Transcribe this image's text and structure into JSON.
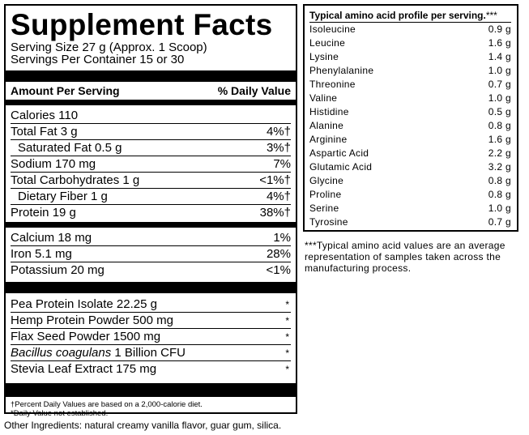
{
  "supplement_facts": {
    "title": "Supplement Facts",
    "serving_size": "Serving Size 27 g (Approx. 1 Scoop)",
    "servings_per_container": "Servings Per Container 15 or 30",
    "header_left": "Amount Per Serving",
    "header_right": "% Daily Value",
    "group1": [
      {
        "label": "Calories 110",
        "dv": ""
      },
      {
        "label": "Total Fat 3 g",
        "dv": "4%†"
      },
      {
        "label": "Saturated Fat 0.5 g",
        "dv": "3%†"
      },
      {
        "label": "Sodium 170 mg",
        "dv": "7%"
      },
      {
        "label": "Total Carbohydrates 1 g",
        "dv": "<1%†"
      },
      {
        "label": "Dietary Fiber 1 g",
        "dv": "4%†"
      },
      {
        "label": "Protein 19 g",
        "dv": "38%†"
      }
    ],
    "group2": [
      {
        "label": "Calcium 18 mg",
        "dv": "1%"
      },
      {
        "label": "Iron 5.1 mg",
        "dv": "28%"
      },
      {
        "label": "Potassium 20 mg",
        "dv": "<1%"
      }
    ],
    "group3": [
      {
        "label": "Pea Protein Isolate 22.25 g",
        "dv": "*"
      },
      {
        "label": "Hemp Protein Powder 500 mg",
        "dv": "*"
      },
      {
        "label": "Flax Seed Powder 1500 mg",
        "dv": "*"
      },
      {
        "label_italic": "Bacillus coagulans",
        "label_rest": " 1 Billion CFU",
        "dv": "*"
      },
      {
        "label": "Stevia Leaf Extract 175 mg",
        "dv": "*"
      }
    ],
    "footnote1": "†Percent Daily Values are based on a 2,000-calorie diet.",
    "footnote2": "*Daily Value not established."
  },
  "other_ingredients": "Other Ingredients: natural creamy vanilla flavor, guar gum, silica.",
  "amino": {
    "heading": "Typical amino acid profile per serving.",
    "heading_mark": "***",
    "rows": [
      {
        "name": "Isoleucine",
        "value": "0.9 g"
      },
      {
        "name": "Leucine",
        "value": "1.6 g"
      },
      {
        "name": "Lysine",
        "value": "1.4 g"
      },
      {
        "name": "Phenylalanine",
        "value": "1.0 g"
      },
      {
        "name": "Threonine",
        "value": "0.7 g"
      },
      {
        "name": "Valine",
        "value": "1.0 g"
      },
      {
        "name": "Histidine",
        "value": "0.5 g"
      },
      {
        "name": "Alanine",
        "value": "0.8 g"
      },
      {
        "name": "Arginine",
        "value": "1.6 g"
      },
      {
        "name": "Aspartic Acid",
        "value": "2.2 g"
      },
      {
        "name": "Glutamic Acid",
        "value": "3.2 g"
      },
      {
        "name": "Glycine",
        "value": "0.8 g"
      },
      {
        "name": "Proline",
        "value": "0.8 g"
      },
      {
        "name": "Serine",
        "value": "1.0 g"
      },
      {
        "name": "Tyrosine",
        "value": "0.7 g"
      }
    ],
    "note": "***Typical amino acid values are an average representation of samples taken across the manufacturing process."
  }
}
